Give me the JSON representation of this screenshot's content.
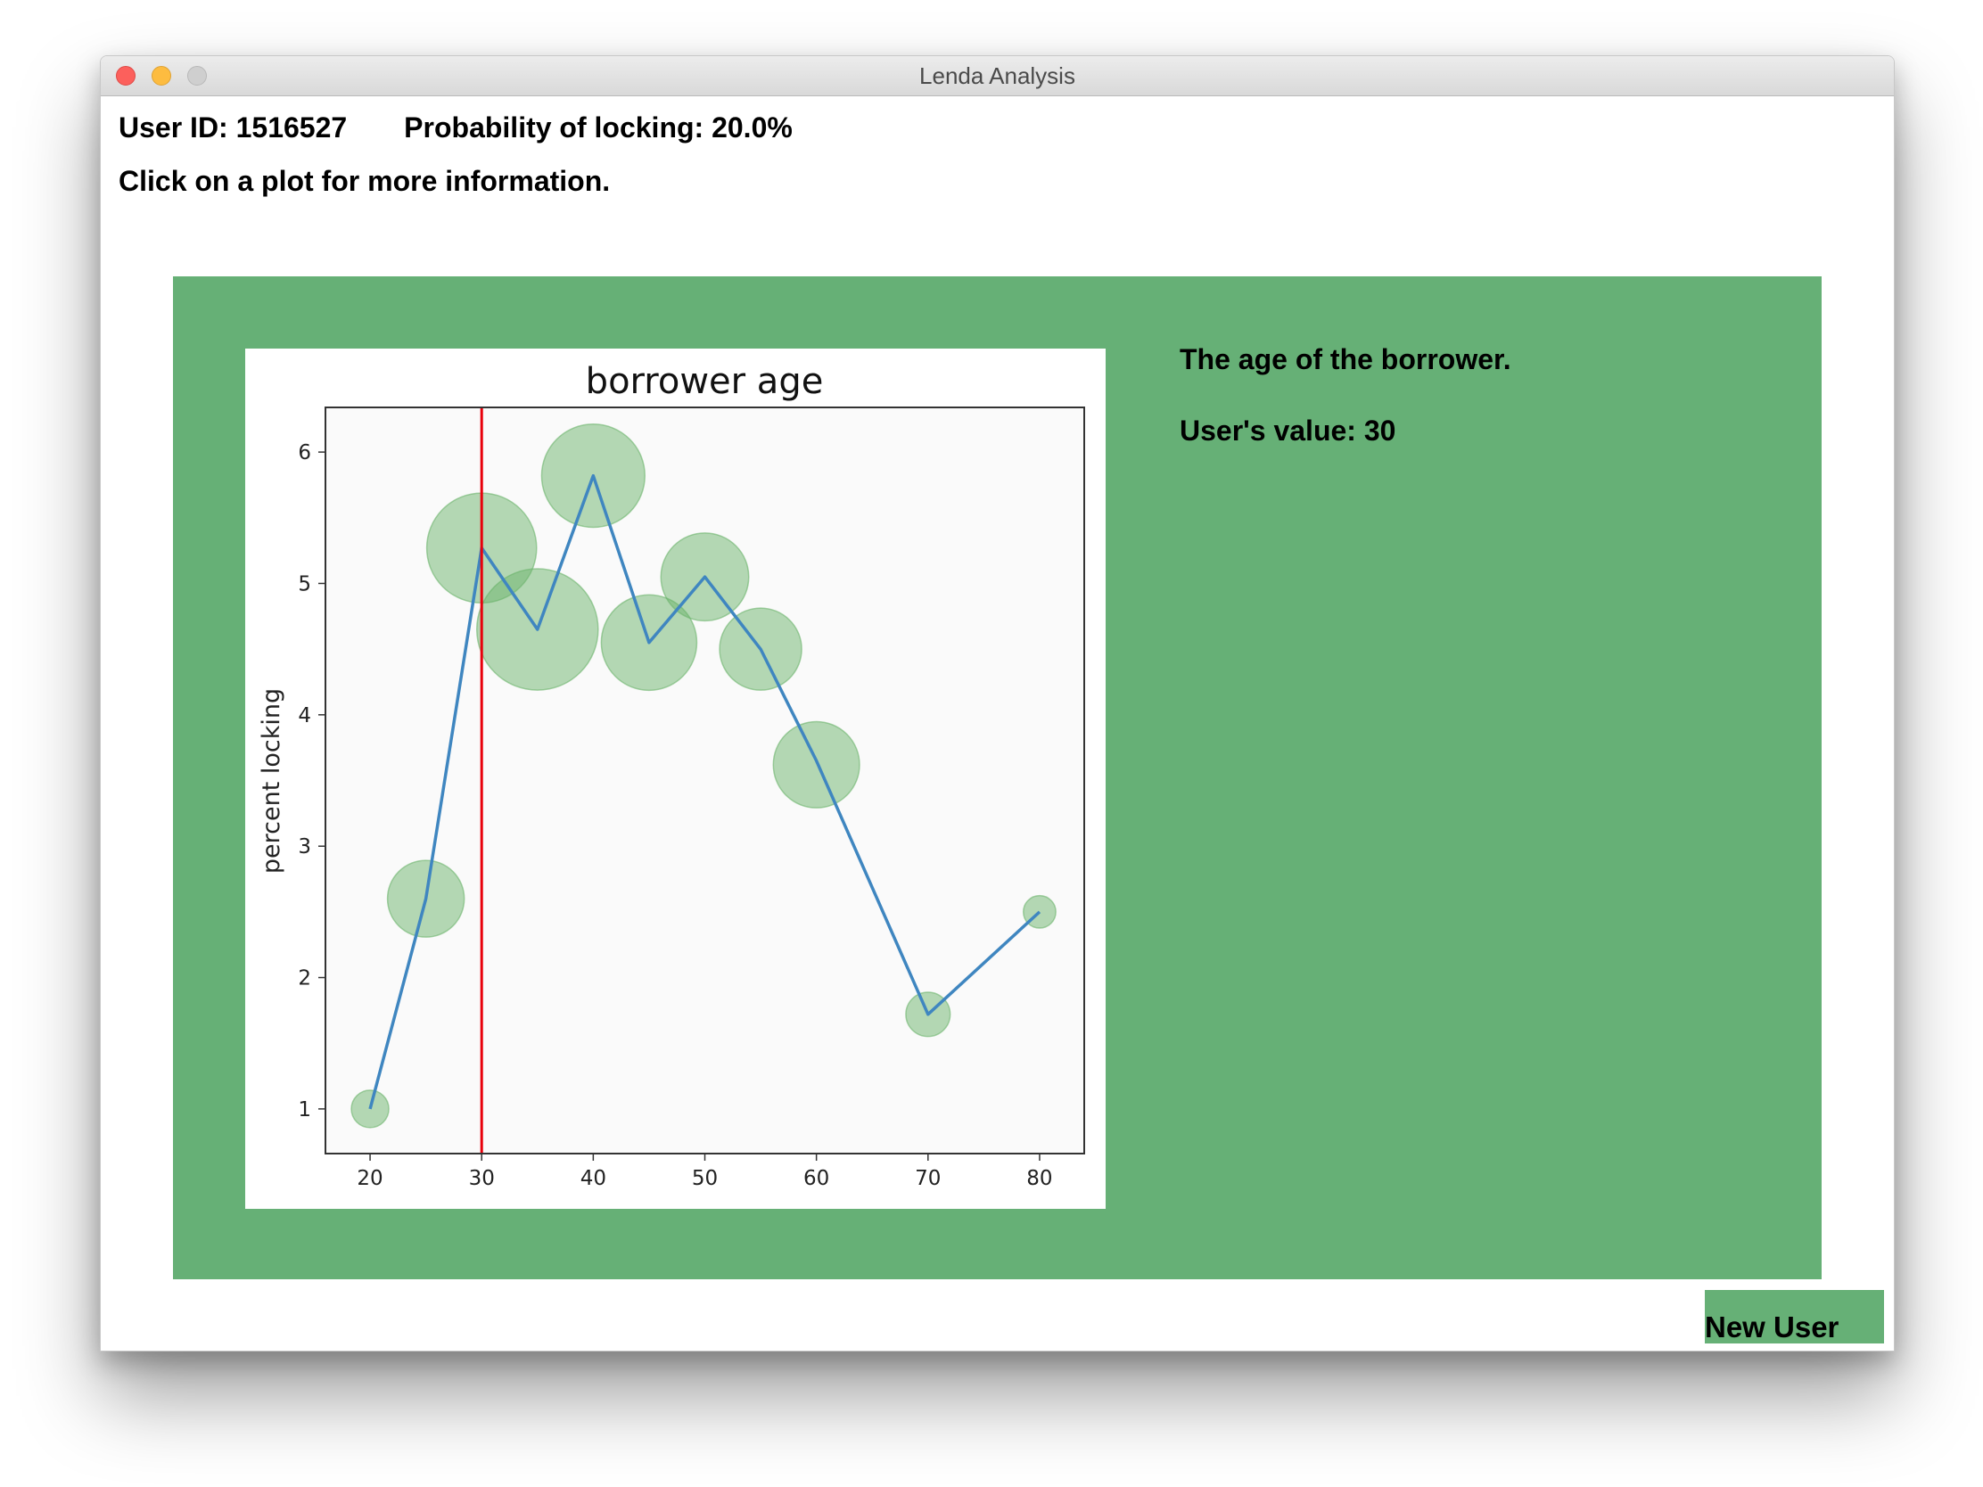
{
  "window": {
    "title": "Lenda Analysis"
  },
  "header": {
    "user_id": "User ID: 1516527",
    "probability": "Probability of locking: 20.0%",
    "hint": "Click on a plot for more information."
  },
  "feature": {
    "description": "The age of the borrower.",
    "user_value": "User's value: 30"
  },
  "buttons": {
    "new_user": "New User"
  },
  "colors": {
    "panel": "#66b076",
    "line": "#3f86c0",
    "bubble": "#6cb46c",
    "marker": "#e8000b"
  },
  "chart_data": {
    "type": "scatter",
    "title": "borrower age",
    "xlabel": "",
    "ylabel": "percent locking",
    "xlim": [
      16,
      84
    ],
    "ylim": [
      0.66,
      6.34
    ],
    "xticks": [
      20,
      30,
      40,
      50,
      60,
      70,
      80
    ],
    "yticks": [
      1,
      2,
      3,
      4,
      5,
      6
    ],
    "grid": false,
    "legend": "none",
    "reference_line_x": 30,
    "points": [
      {
        "x": 20,
        "y": 1.0,
        "bubble_y": 1.0,
        "weight": 1.0
      },
      {
        "x": 25,
        "y": 2.6,
        "bubble_y": 2.6,
        "weight": 4.2
      },
      {
        "x": 30,
        "y": 5.27,
        "bubble_y": 5.27,
        "weight": 8.6
      },
      {
        "x": 35,
        "y": 4.65,
        "bubble_y": 4.65,
        "weight": 10.5
      },
      {
        "x": 40,
        "y": 5.82,
        "bubble_y": 5.82,
        "weight": 7.6
      },
      {
        "x": 45,
        "y": 4.55,
        "bubble_y": 4.55,
        "weight": 6.5
      },
      {
        "x": 50,
        "y": 5.05,
        "bubble_y": 5.05,
        "weight": 5.5
      },
      {
        "x": 55,
        "y": 4.5,
        "bubble_y": 4.5,
        "weight": 4.8
      },
      {
        "x": 60,
        "y": 3.65,
        "bubble_y": 3.62,
        "weight": 5.3
      },
      {
        "x": 70,
        "y": 1.72,
        "bubble_y": 1.72,
        "weight": 1.4
      },
      {
        "x": 80,
        "y": 2.5,
        "bubble_y": 2.5,
        "weight": 0.75
      }
    ]
  }
}
